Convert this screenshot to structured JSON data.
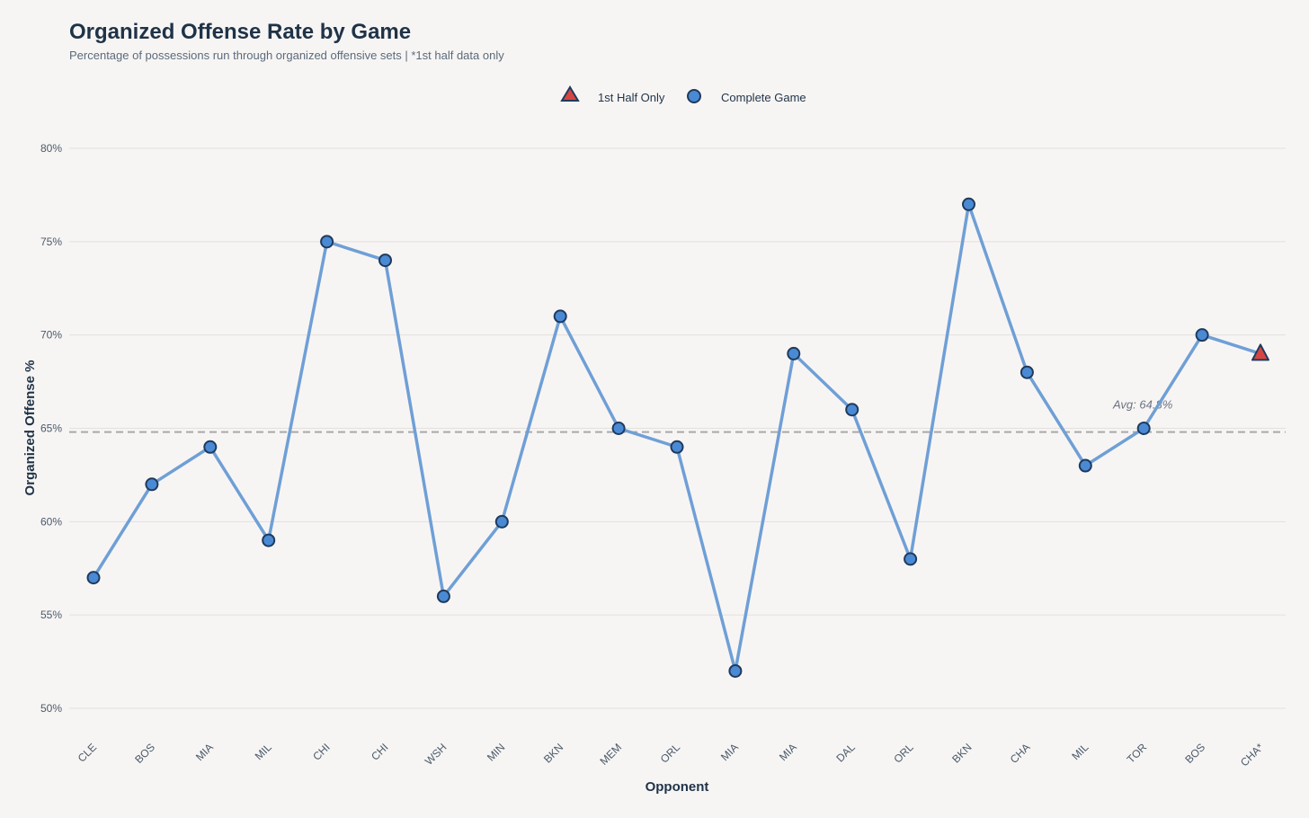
{
  "header": {
    "title": "Organized Offense Rate by Game",
    "subtitle": "Percentage of possessions run through organized offensive sets | *1st half data only"
  },
  "legend": {
    "items": [
      {
        "label": "1st Half Only",
        "marker": "triangle",
        "color": "#d64541"
      },
      {
        "label": "Complete Game",
        "marker": "circle",
        "color": "#4a8ad4"
      }
    ]
  },
  "chart_data": {
    "type": "line",
    "xlabel": "Opponent",
    "ylabel": "Organized Offense %",
    "ylim": [
      50,
      80
    ],
    "yticks": [
      50,
      55,
      60,
      65,
      70,
      75,
      80
    ],
    "ytick_labels": [
      "50%",
      "55%",
      "60%",
      "65%",
      "70%",
      "75%",
      "80%"
    ],
    "categories": [
      "CLE",
      "BOS",
      "MIA",
      "MIL",
      "CHI",
      "CHI",
      "WSH",
      "MIN",
      "BKN",
      "MEM",
      "ORL",
      "MIA",
      "MIA",
      "DAL",
      "ORL",
      "BKN",
      "CHA",
      "MIL",
      "TOR",
      "BOS",
      "CHA*"
    ],
    "values": [
      57,
      62,
      64,
      59,
      75,
      74,
      56,
      60,
      71,
      65,
      64,
      52,
      69,
      66,
      58,
      77,
      68,
      63,
      65,
      70,
      69
    ],
    "marker_types": [
      "circle",
      "circle",
      "circle",
      "circle",
      "circle",
      "circle",
      "circle",
      "circle",
      "circle",
      "circle",
      "circle",
      "circle",
      "circle",
      "circle",
      "circle",
      "circle",
      "circle",
      "circle",
      "circle",
      "circle",
      "triangle"
    ],
    "average": 64.8,
    "average_label": "Avg: 64.8%",
    "grid": true,
    "legend_position": "top-center",
    "colors": {
      "line": "#6f9fd6",
      "marker_fill": "#4a8ad4",
      "marker_stroke": "#1f3a5c",
      "triangle_fill": "#d64541",
      "avg_line": "#a9a9a9",
      "grid": "#e3dfdd"
    }
  }
}
